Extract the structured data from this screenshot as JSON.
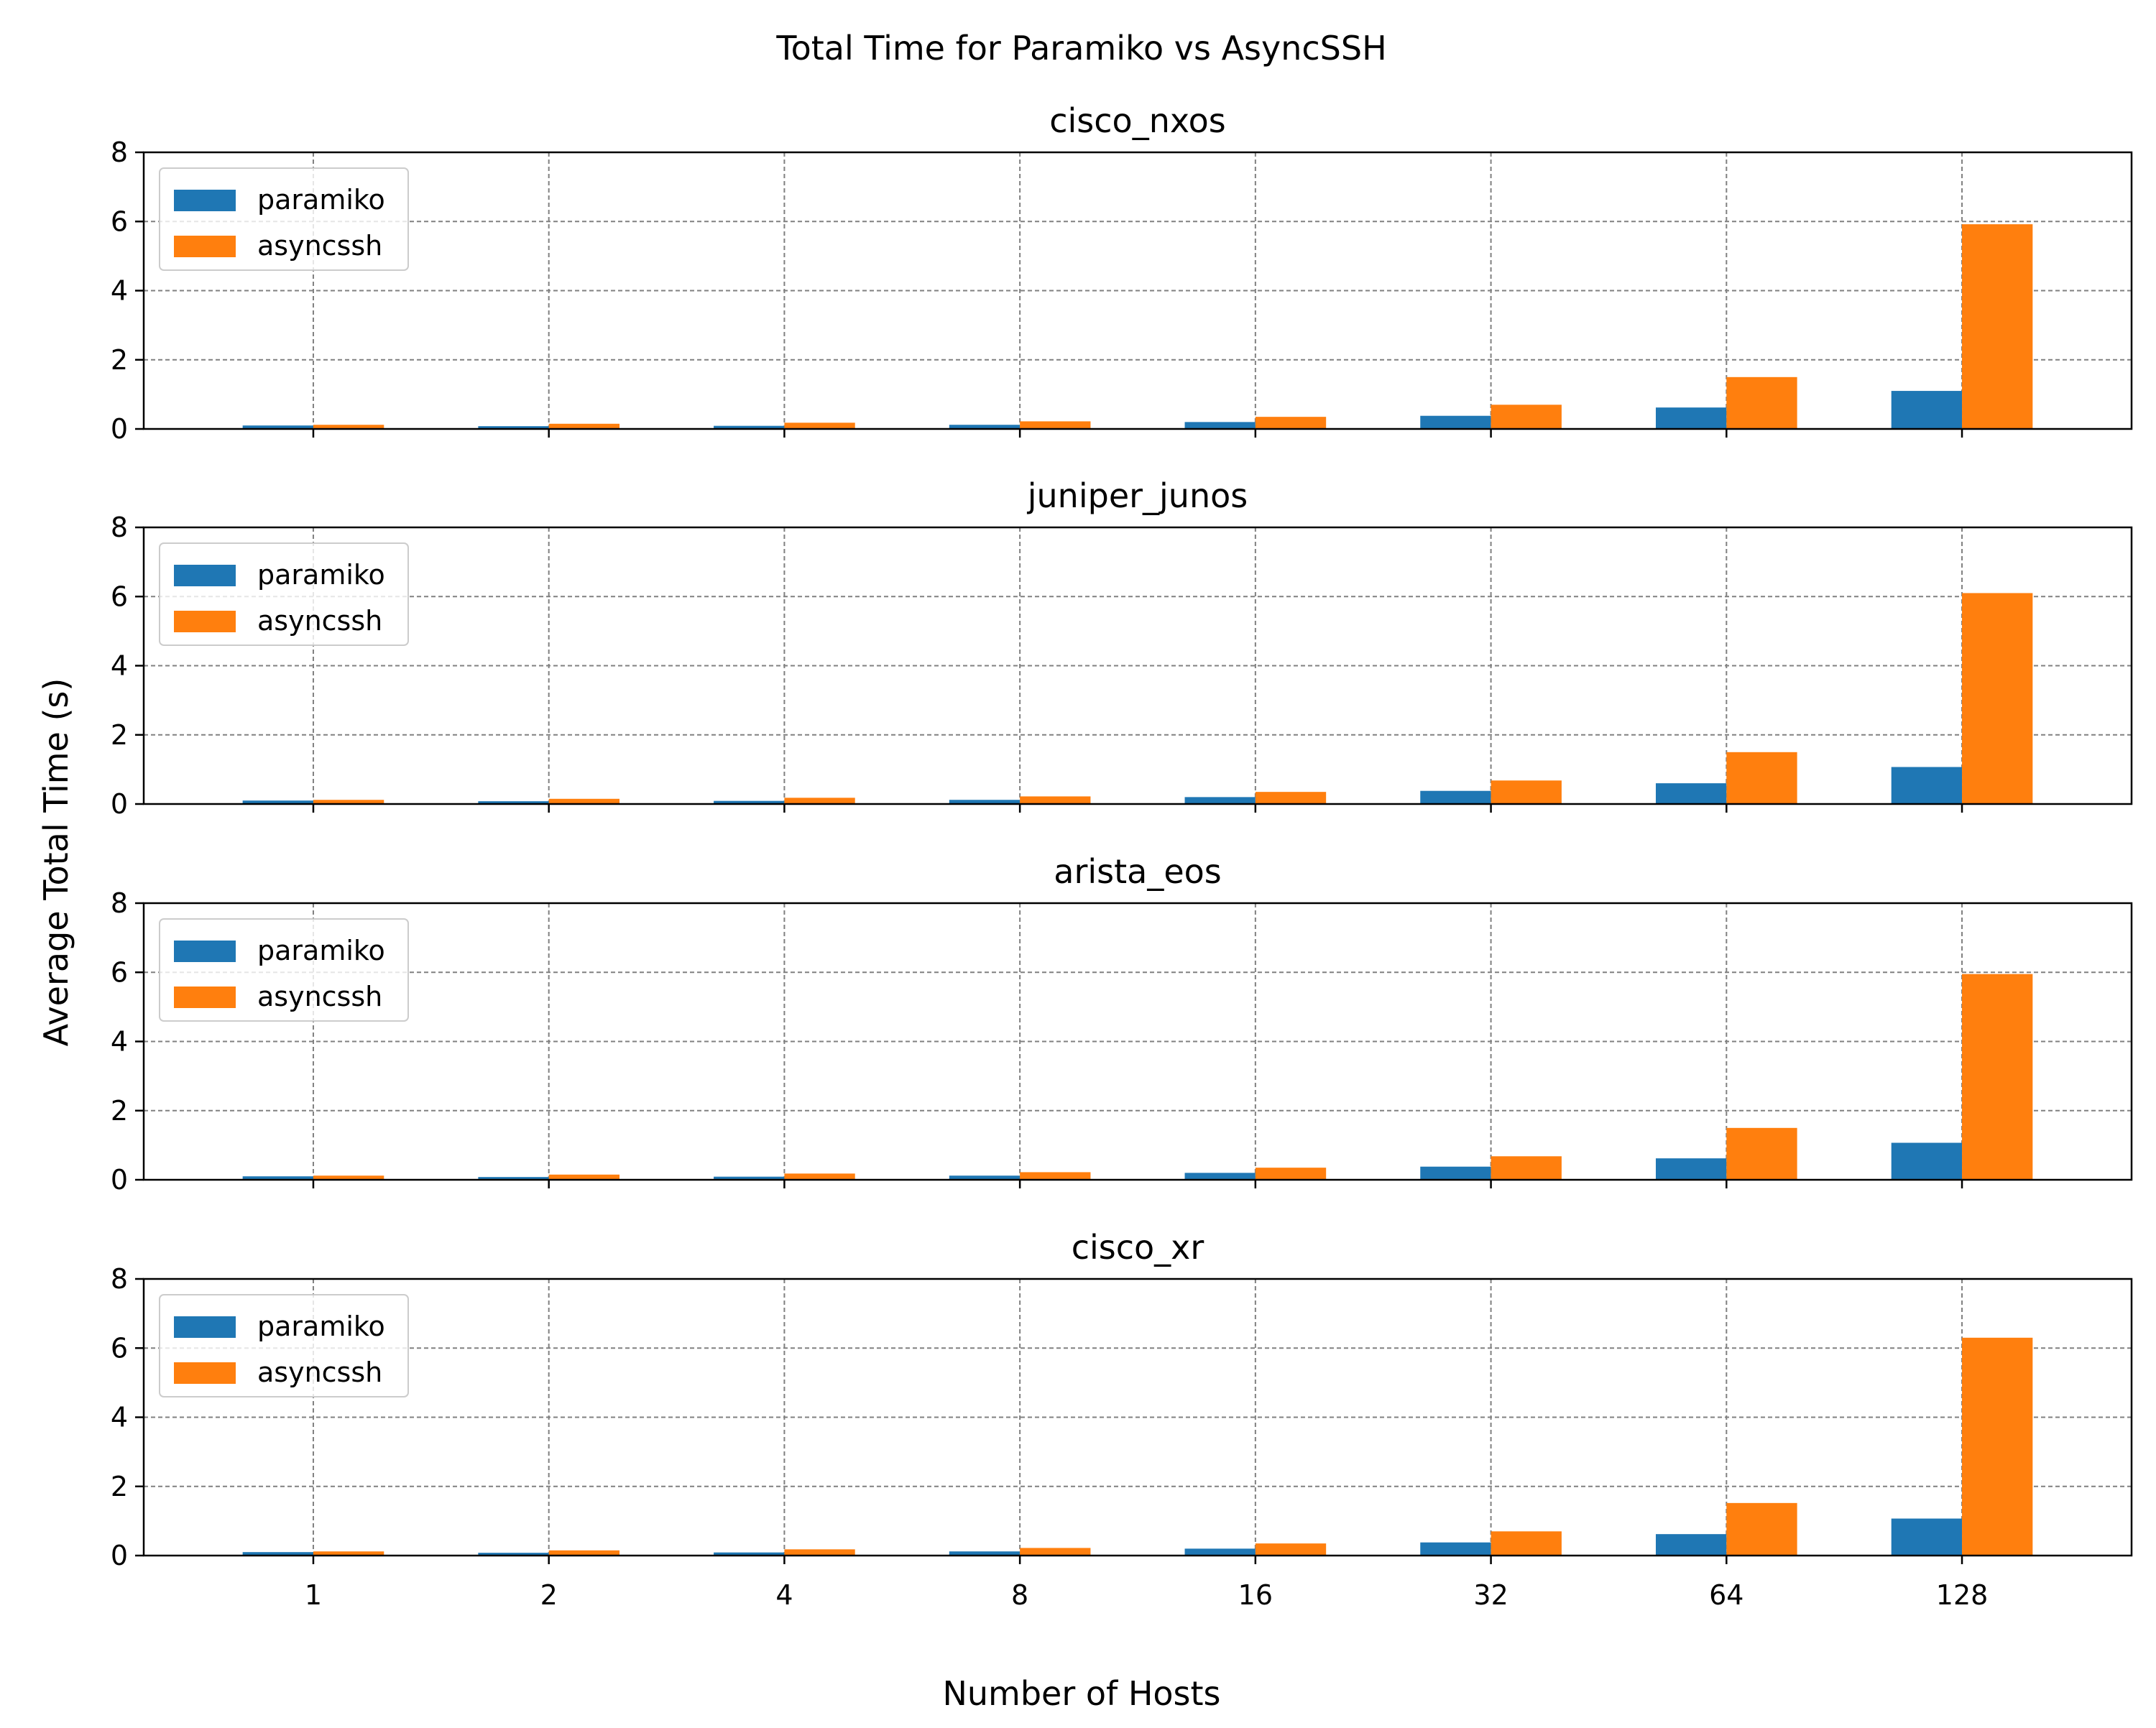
{
  "chart_data": {
    "type": "bar",
    "title": "Total Time for Paramiko vs AsyncSSH",
    "xlabel": "Number of Hosts",
    "ylabel": "Average Total Time (s)",
    "categories": [
      "1",
      "2",
      "4",
      "8",
      "16",
      "32",
      "64",
      "128"
    ],
    "ylim": [
      0,
      8
    ],
    "yticks": [
      0,
      2,
      4,
      6,
      8
    ],
    "grid": true,
    "legend_position": "upper-left",
    "series_colors": {
      "paramiko": "#1f77b4",
      "asyncssh": "#ff7f0e"
    },
    "panels": [
      {
        "title": "cisco_nxos",
        "series": [
          {
            "name": "paramiko",
            "values": [
              0.1,
              0.08,
              0.09,
              0.12,
              0.2,
              0.38,
              0.62,
              1.1
            ]
          },
          {
            "name": "asyncssh",
            "values": [
              0.12,
              0.15,
              0.18,
              0.22,
              0.35,
              0.7,
              1.5,
              5.92
            ]
          }
        ]
      },
      {
        "title": "juniper_junos",
        "series": [
          {
            "name": "paramiko",
            "values": [
              0.1,
              0.08,
              0.09,
              0.12,
              0.2,
              0.38,
              0.6,
              1.07
            ]
          },
          {
            "name": "asyncssh",
            "values": [
              0.12,
              0.15,
              0.18,
              0.22,
              0.35,
              0.68,
              1.5,
              6.1
            ]
          }
        ]
      },
      {
        "title": "arista_eos",
        "series": [
          {
            "name": "paramiko",
            "values": [
              0.1,
              0.08,
              0.09,
              0.12,
              0.2,
              0.38,
              0.62,
              1.07
            ]
          },
          {
            "name": "asyncssh",
            "values": [
              0.12,
              0.15,
              0.18,
              0.22,
              0.35,
              0.68,
              1.5,
              5.95
            ]
          }
        ]
      },
      {
        "title": "cisco_xr",
        "series": [
          {
            "name": "paramiko",
            "values": [
              0.1,
              0.08,
              0.09,
              0.12,
              0.2,
              0.38,
              0.62,
              1.07
            ]
          },
          {
            "name": "asyncssh",
            "values": [
              0.12,
              0.15,
              0.18,
              0.22,
              0.35,
              0.7,
              1.52,
              6.3
            ]
          }
        ]
      }
    ]
  }
}
